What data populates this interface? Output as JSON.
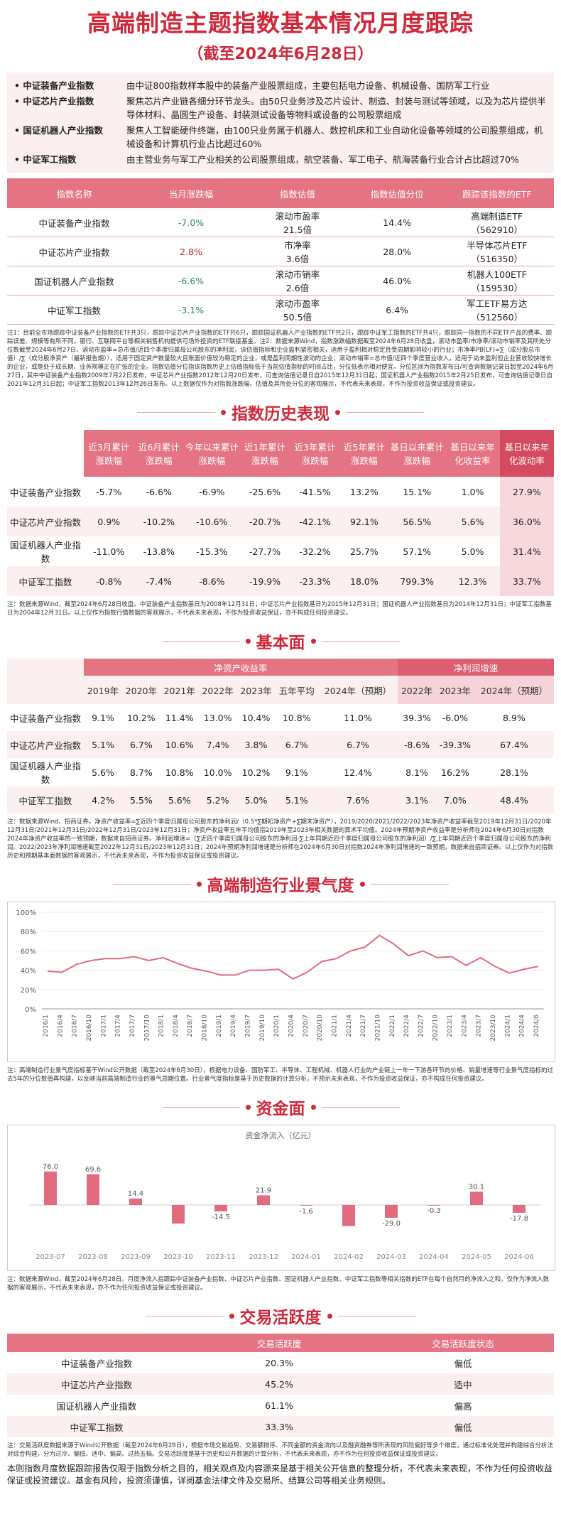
{
  "header": {
    "title": "高端制造主题指数基本情况月度跟踪",
    "subtitle": "（截至2024年6月28日）"
  },
  "intro": [
    {
      "name": "中证装备产业指数",
      "desc": "由中证800指数样本股中的装备产业股票组成，主要包括电力设备、机械设备、国防军工行业"
    },
    {
      "name": "中证芯片产业指数",
      "desc": "聚焦芯片产业链各细分环节龙头。由50只业务涉及芯片设计、制造、封装与测试等领域，以及为芯片提供半导体材料、晶圆生产设备、封装测试设备等物料或设备的公司股票组成"
    },
    {
      "name": "国证机器人产业指数",
      "desc": "聚焦人工智能硬件终端，由100只业务属于机器人、数控机床和工业自动化设备等领域的公司股票组成，机械设备和计算机行业占比超过60%"
    },
    {
      "name": "中证军工指数",
      "desc": "由主营业务与军工产业相关的公司股票组成，航空装备、军工电子、航海装备行业合计占比超过70%"
    }
  ],
  "table1": {
    "headers": [
      "指数名称",
      "当月涨跌幅",
      "指数估值",
      "指数估值分位",
      "跟踪该指数的ETF"
    ],
    "rows": [
      {
        "name": "中证装备产业指数",
        "change": "-7.0%",
        "sign": "neg",
        "val_type": "滚动市盈率",
        "val": "21.5倍",
        "pct": "14.4%",
        "etf": "高端制造ETF",
        "etf_code": "（562910）"
      },
      {
        "name": "中证芯片产业指数",
        "change": "2.8%",
        "sign": "pos",
        "val_type": "市净率",
        "val": "3.6倍",
        "pct": "28.0%",
        "etf": "半导体芯片ETF",
        "etf_code": "（516350）"
      },
      {
        "name": "国证机器人产业指数",
        "change": "-6.6%",
        "sign": "neg",
        "val_type": "滚动市销率",
        "val": "2.6倍",
        "pct": "46.0%",
        "etf": "机器人100ETF",
        "etf_code": "（159530）"
      },
      {
        "name": "中证军工指数",
        "change": "-3.1%",
        "sign": "neg",
        "val_type": "滚动市盈率",
        "val": "50.5倍",
        "pct": "6.4%",
        "etf": "军工ETF易方达",
        "etf_code": "（512560）"
      }
    ],
    "note": "注1：目前全市场跟踪中证装备产业指数的ETF共3只，跟踪中证芯片产业指数的ETF共6只，跟踪国证机器人产业指数的ETF共2只，跟踪中证军工指数的ETF共4只，跟踪同一指数的不同ETF产品的费率、跟踪误差、规模等有所不同。银行、互联网平台等相关销售机构提供可场外投资的ETF联接基金。注2：数据来源Wind，指数涨跌幅数据截至2024年6月28日收盘，滚动市盈率/市净率/滚动市销率及其所处分位数截至2024年6月27日。滚动市盈率=总市值/近四个季度归属母公司股东的净利润，该估值指标和企业盈利紧密相关，适用于盈利相对稳定且受周期影响较小的行业；市净率PB(LF)=∑（成分股总市值）/∑（成分股净资产（最新报告期）），适用于固定资产数量较大且账面价值较为稳定的企业，或是盈利周期性波动的企业；滚动市销率=总市值/近四个季度营业收入，适用于尚未盈利但企业营收较快增长的企业，或是处于成长期、业务规模正在扩张的企业。指数估值分位指该指数历史上估值指标低于当前估值指标的时间占比，分位低表示相对便宜。分位区间为指数发布日/可查询数据记录日起至2024年6月27日，其中中证装备产业指数2009年7月22日发布，中证芯片产业指数2012年12月20日发布，可查询估值记录日自2015年12月31日起；国证机器人产业指数2015年2月25日发布，可查询估值记录日自2021年12月31日起；中证军工指数2013年12月26日发布。以上数据仅作为对指数涨跌幅、估值及其所处分位的客观展示，不代表未来表现，不作为投资收益保证或投资建议。"
  },
  "history": {
    "title": "指数历史表现",
    "headers": [
      "近3月累计涨跌幅",
      "近6月累计涨跌幅",
      "今年以来累计涨跌幅",
      "近1年累计涨跌幅",
      "近3年累计涨跌幅",
      "近5年累计涨跌幅",
      "基日以来累计涨跌幅",
      "基日以来年化收益率",
      "基日以来年化波动率"
    ],
    "rows": [
      {
        "name": "中证装备产业指数",
        "values": [
          "-5.7%",
          "-6.6%",
          "-6.9%",
          "-25.6%",
          "-41.5%",
          "13.2%",
          "15.1%",
          "1.0%",
          "27.9%"
        ]
      },
      {
        "name": "中证芯片产业指数",
        "values": [
          "0.9%",
          "-10.2%",
          "-10.6%",
          "-20.7%",
          "-42.1%",
          "92.1%",
          "56.5%",
          "5.6%",
          "36.0%"
        ]
      },
      {
        "name": "国证机器人产业指数",
        "values": [
          "-11.0%",
          "-13.8%",
          "-15.3%",
          "-27.7%",
          "-32.2%",
          "25.7%",
          "57.1%",
          "5.0%",
          "31.4%"
        ]
      },
      {
        "name": "中证军工指数",
        "values": [
          "-0.8%",
          "-7.4%",
          "-8.6%",
          "-19.9%",
          "-23.3%",
          "18.0%",
          "799.3%",
          "12.3%",
          "33.7%"
        ]
      }
    ],
    "note": "注：数据来源Wind，截至2024年6月28日收盘。中证装备产业指数基日为2008年12月31日；中证芯片产业指数基日为2015年12月31日；国证机器人产业指数基日为2014年12月31日；中证军工指数基日为2004年12月31日。以上仅作为指数行情数据的客观展示，不代表未来表现，不作为投资收益保证，亦不构成任何投资建议。"
  },
  "fundamentals": {
    "title": "基本面",
    "group1": "净资产收益率",
    "group2": "净利润增速",
    "years1": [
      "2019年",
      "2020年",
      "2021年",
      "2022年",
      "2023年",
      "五年平均",
      "2024年（预期）"
    ],
    "years2": [
      "2022年",
      "2023年",
      "2024年（预期）"
    ],
    "rows": [
      {
        "name": "中证装备产业指数",
        "roe": [
          "9.1%",
          "10.2%",
          "11.4%",
          "13.0%",
          "10.4%",
          "10.8%",
          "11.0%"
        ],
        "growth": [
          "39.3%",
          "-6.0%",
          "8.9%"
        ]
      },
      {
        "name": "中证芯片产业指数",
        "roe": [
          "5.1%",
          "6.7%",
          "10.6%",
          "7.4%",
          "3.8%",
          "6.7%",
          "6.7%"
        ],
        "growth": [
          "-8.6%",
          "-39.3%",
          "67.4%"
        ]
      },
      {
        "name": "国证机器人产业指数",
        "roe": [
          "5.6%",
          "8.7%",
          "10.8%",
          "10.0%",
          "10.2%",
          "9.1%",
          "12.4%"
        ],
        "growth": [
          "8.1%",
          "16.2%",
          "28.1%"
        ]
      },
      {
        "name": "中证军工指数",
        "roe": [
          "4.2%",
          "5.5%",
          "5.6%",
          "5.2%",
          "5.0%",
          "5.1%",
          "7.6%"
        ],
        "growth": [
          "3.1%",
          "7.0%",
          "48.4%"
        ]
      }
    ],
    "note": "注：数据来源Wind、招商证券。净资产收益率=∑近四个季度归属母公司股东的净利润/（0.5*∑期初净资产+∑期末净资产），2019/2020/2021/2022/2023年净资产收益率截至2019年12月31日/2020年12月31日/2021年12月31日/2022年12月31日/2023年12月31日；净资产收益率五年平均值指2019年至2023年相关数据的算术平均值。2024年预期净资产收益率是分析师在2024年6月30日对指数2024年净资产收益率的一致预期，数据来自招商证券。净利润增速=（∑近四个季度归属母公司股东的净利润-∑上年同期近四个季度归属母公司股东的净利润）/∑上年同期近四个季度归属母公司股东的净利润。2022/2023年净利润增速截至2022年12月31日/2023年12月31日；2024年预期净利润增速是分析师在2024年6月30日对指数2024年净利润增速的一致预期，数据来自招商证券。以上仅作为对指数历史和预期基本面数据的客观展示，不代表未来表现，不作为投资收益保证或投资建议。"
  },
  "prosperity": {
    "title": "高端制造行业景气度",
    "note": "注：高端制造行业景气度指标基于Wind公开数据（截至2024年6月30日），根据电力设备、国防军工、半导体、工程机械、机器人行业的产业链上一年一下游各环节的价格、销量增速等行业景气度指标的过去5年的分位数值再构建，以反映当前高端制造行业的景气周期位置。行业景气度指标是基于历史数据的计算分析，不预示未来表现，不作为投资收益保证，亦不构成任何投资建议。"
  },
  "funds": {
    "title": "资金面",
    "chart_title": "资金净流入（亿元）",
    "note": "注：数据来源Wind，截至2024年6月28日。月度净流入指跟踪中证装备产业指数、中证芯片产业指数、国证机器人产业指数、中证军工指数等相关指数的ETF在每个自然月的净流入之和，仅作为净流入数据的客观展示，不代表未来表现，亦不作为任何投资收益保证或投资建议。"
  },
  "activity": {
    "title": "交易活跃度",
    "headers": [
      "",
      "交易活跃度",
      "交易活跃度状态"
    ],
    "rows": [
      {
        "name": "中证装备产业指数",
        "value": "20.3%",
        "status": "偏低"
      },
      {
        "name": "中证芯片产业指数",
        "value": "45.2%",
        "status": "适中"
      },
      {
        "name": "国证机器人产业指数",
        "value": "61.1%",
        "status": "偏高"
      },
      {
        "name": "中证军工指数",
        "value": "33.3%",
        "status": "偏低"
      }
    ],
    "note": "注：交易活跃度数据来源于Wind公开数据（截至2024年6月28日），根据市场交易趋势、交易额排序、不同金额的资金流向以及融资融券等所表现的风险偏好等多个维度，通过标准化处理并构建综合分析法对综合构建，分为过冷、偏低、适中、偏高、过热五档。交易活跃度是基于历史和公开数据的计算分析，不代表未来表现，亦不作为任何投资收益保证或投资建议。"
  },
  "disclaimer": "本则指数月度数据跟踪报告仅限于指数分析之目的，相关观点及内容源来是基于相关公开信息的整理分析，不代表未来表现，不作为任何投资收益保证或投资建议。基金有风险，投资须谨慎，详阅基金法律文件及交易所、结算公司等相关业务规则。",
  "chart_data": [
    {
      "type": "line",
      "title": "",
      "ylim": [
        0,
        100
      ],
      "yticks": [
        "0%",
        "20%",
        "40%",
        "60%",
        "80%",
        "100%"
      ],
      "x": [
        "2016-1",
        "2016-4",
        "2016-7",
        "2016-10",
        "2017-1",
        "2017-4",
        "2017-7",
        "2017-10",
        "2018-1",
        "2018-4",
        "2018-7",
        "2018-10",
        "2019-1",
        "2019-4",
        "2019-7",
        "2019-10",
        "2020-1",
        "2020-4",
        "2020-7",
        "2020-10",
        "2021-1",
        "2021-4",
        "2021-7",
        "2021-10",
        "2022-1",
        "2022-4",
        "2022-7",
        "2022-10",
        "2023-1",
        "2023-4",
        "2023-7",
        "2023-10",
        "2024-1",
        "2024-4",
        "2024-6"
      ],
      "xticks": [
        "2016/1",
        "2016/4",
        "2016/7",
        "2016/10",
        "2017/1",
        "2017/4",
        "2017/7",
        "2017/10",
        "2018/1",
        "2018/4",
        "2018/7",
        "2018/10",
        "2019/1",
        "2019/4",
        "2019/7",
        "2019/10",
        "2020/1",
        "2020/4",
        "2020/7",
        "2020/10",
        "2021/1",
        "2021/4",
        "2021/7",
        "2021/10",
        "2022/1",
        "2022/4",
        "2022/7",
        "2022/10",
        "2023/1",
        "2023/4",
        "2023/7",
        "2023/10",
        "2024/1",
        "2024/4",
        "2024/6"
      ],
      "values": [
        39,
        38,
        46,
        50,
        52,
        52,
        54,
        50,
        53,
        47,
        42,
        39,
        35,
        35,
        40,
        40,
        41,
        31,
        38,
        49,
        52,
        60,
        64,
        76,
        67,
        55,
        60,
        53,
        54,
        45,
        53,
        44,
        37,
        41,
        44
      ],
      "color": "#e26b7e"
    },
    {
      "type": "bar",
      "title": "资金净流入（亿元）",
      "categories": [
        "2023-07",
        "2023-08",
        "2023-09",
        "2023-10",
        "2023-11",
        "2023-12",
        "2024-01",
        "2024-02",
        "2024-03",
        "2024-04",
        "2024-05",
        "2024-06"
      ],
      "values": [
        76.0,
        69.6,
        14.4,
        -42.3,
        -14.5,
        21.9,
        -1.6,
        -48.0,
        -29.0,
        -0.3,
        30.1,
        -17.8
      ],
      "labels": [
        "76.0",
        "69.6",
        "14.4",
        "",
        "-14.5",
        "21.9",
        "-1.6",
        "",
        "-29.0",
        "-0.3",
        "30.1",
        "-17.8"
      ],
      "color": "#e26b7e"
    }
  ]
}
